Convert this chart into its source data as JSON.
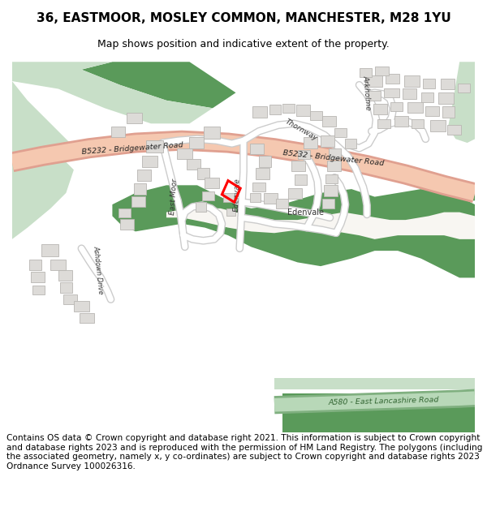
{
  "title_line1": "36, EASTMOOR, MOSLEY COMMON, MANCHESTER, M28 1YU",
  "title_line2": "Map shows position and indicative extent of the property.",
  "footer": "Contains OS data © Crown copyright and database right 2021. This information is subject to Crown copyright and database rights 2023 and is reproduced with the permission of HM Land Registry. The polygons (including the associated geometry, namely x, y co-ordinates) are subject to Crown copyright and database rights 2023 Ordnance Survey 100026316.",
  "bg_color": "#ffffff",
  "map_bg": "#f8f6f2",
  "green_dark": "#5a9a5a",
  "green_light": "#c8dfc8",
  "road_fill": "#f5c8b0",
  "road_edge": "#e0a090",
  "building_fill": "#dddbd8",
  "building_edge": "#b8b6b2",
  "plot_color": "#ff0000",
  "street_fill": "#ffffff",
  "street_edge": "#cccccc",
  "a580_fill": "#b8d8b8",
  "a580_edge": "#80b080"
}
